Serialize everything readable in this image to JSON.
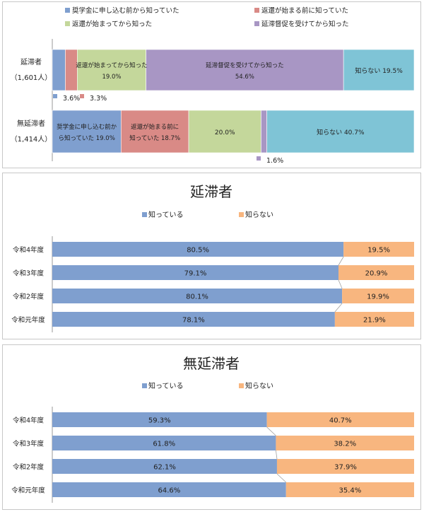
{
  "chart_data": [
    {
      "type": "bar",
      "stacked": "100%",
      "orientation": "horizontal",
      "legend_position": "top",
      "legend": [
        {
          "label": "奨学金に申し込む前から知っていた",
          "color": "#7f9fcf"
        },
        {
          "label": "返還が始まる前に知っていた",
          "color": "#d98a86"
        },
        {
          "label": "返還が始まってから知った",
          "color": "#c4d79b"
        },
        {
          "label": "延滞督促を受けてから知った",
          "color": "#a896c4"
        }
      ],
      "categories": [
        {
          "name": "延滞者",
          "count": "（1,601人）"
        },
        {
          "name": "無延滞者",
          "count": "（1,414人）"
        }
      ],
      "series": [
        {
          "name": "奨学金に申し込む前から知っていた",
          "color": "#7f9fcf",
          "values": [
            3.6,
            19.0
          ],
          "labels": [
            "3.6%",
            "奨学金に申し込む前か|ら知っていた 19.0%"
          ]
        },
        {
          "name": "返還が始まる前に知っていた",
          "color": "#d98a86",
          "values": [
            3.3,
            18.7
          ],
          "labels": [
            "3.3%",
            "返還が始まる前に|知っていた 18.7%"
          ]
        },
        {
          "name": "返還が始まってから知った",
          "color": "#c4d79b",
          "values": [
            19.0,
            20.0
          ],
          "labels": [
            "返還が始まってから知った|19.0%",
            "20.0%"
          ]
        },
        {
          "name": "延滞督促を受けてから知った",
          "color": "#a896c4",
          "values": [
            54.6,
            1.6
          ],
          "labels": [
            "延滞督促を受けてから知った|54.6%",
            "1.6%"
          ]
        },
        {
          "name": "知らない",
          "color": "#7fc4d6",
          "values": [
            19.5,
            40.7
          ],
          "labels": [
            "知らない 19.5%",
            "知らない 40.7%"
          ]
        }
      ],
      "xlim": [
        0,
        100
      ]
    },
    {
      "type": "bar",
      "stacked": "100%",
      "orientation": "horizontal",
      "title": "延滞者",
      "legend_position": "top",
      "categories": [
        "令和4年度",
        "令和3年度",
        "令和2年度",
        "令和元年度"
      ],
      "series": [
        {
          "name": "知っている",
          "color": "#7f9fcf",
          "values": [
            80.5,
            79.1,
            80.1,
            78.1
          ]
        },
        {
          "name": "知らない",
          "color": "#f8b67f",
          "values": [
            19.5,
            20.9,
            19.9,
            21.9
          ]
        }
      ],
      "xlim": [
        0,
        100
      ]
    },
    {
      "type": "bar",
      "stacked": "100%",
      "orientation": "horizontal",
      "title": "無延滞者",
      "legend_position": "top",
      "categories": [
        "令和4年度",
        "令和3年度",
        "令和2年度",
        "令和元年度"
      ],
      "series": [
        {
          "name": "知っている",
          "color": "#7f9fcf",
          "values": [
            59.3,
            61.8,
            62.1,
            64.6
          ]
        },
        {
          "name": "知らない",
          "color": "#f8b67f",
          "values": [
            40.7,
            38.2,
            37.9,
            35.4
          ]
        }
      ],
      "xlim": [
        0,
        100
      ]
    }
  ]
}
